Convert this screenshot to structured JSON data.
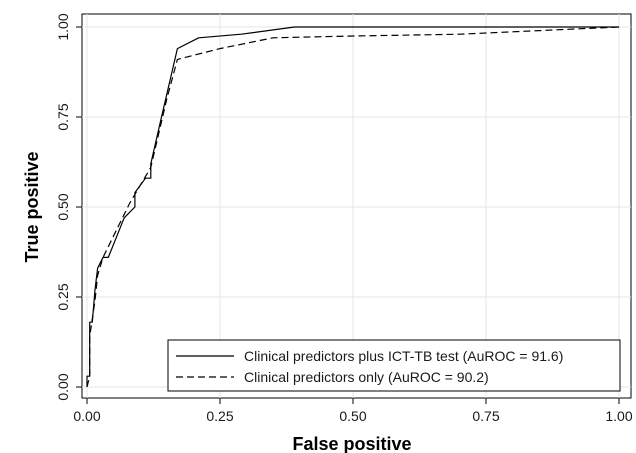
{
  "chart_data": {
    "type": "line",
    "title": "",
    "xlabel": "False positive",
    "ylabel": "True positive",
    "xlim": [
      0,
      1
    ],
    "ylim": [
      0,
      1
    ],
    "x_ticks": [
      "0.00",
      "0.25",
      "0.50",
      "0.75",
      "1.00"
    ],
    "y_ticks": [
      "0.00",
      "0.25",
      "0.50",
      "0.75",
      "1.00"
    ],
    "grid": true,
    "legend_position": "bottom-right",
    "series": [
      {
        "name": "Clinical predictors plus ICT-TB test (AuROC = 91.6)",
        "style": "solid",
        "color": "#000000",
        "points": [
          [
            0.0,
            0.0
          ],
          [
            0.0,
            0.03
          ],
          [
            0.005,
            0.03
          ],
          [
            0.005,
            0.18
          ],
          [
            0.01,
            0.18
          ],
          [
            0.015,
            0.27
          ],
          [
            0.02,
            0.33
          ],
          [
            0.03,
            0.36
          ],
          [
            0.04,
            0.36
          ],
          [
            0.07,
            0.47
          ],
          [
            0.09,
            0.5
          ],
          [
            0.09,
            0.54
          ],
          [
            0.11,
            0.58
          ],
          [
            0.12,
            0.58
          ],
          [
            0.12,
            0.62
          ],
          [
            0.14,
            0.75
          ],
          [
            0.17,
            0.94
          ],
          [
            0.21,
            0.97
          ],
          [
            0.29,
            0.98
          ],
          [
            0.39,
            1.0
          ],
          [
            1.0,
            1.0
          ]
        ]
      },
      {
        "name": "Clinical predictors only (AuROC = 90.2)",
        "style": "dashed",
        "color": "#000000",
        "points": [
          [
            0.0,
            0.0
          ],
          [
            0.005,
            0.03
          ],
          [
            0.005,
            0.14
          ],
          [
            0.015,
            0.24
          ],
          [
            0.02,
            0.31
          ],
          [
            0.03,
            0.36
          ],
          [
            0.05,
            0.42
          ],
          [
            0.08,
            0.51
          ],
          [
            0.1,
            0.56
          ],
          [
            0.12,
            0.61
          ],
          [
            0.15,
            0.8
          ],
          [
            0.17,
            0.91
          ],
          [
            0.25,
            0.94
          ],
          [
            0.35,
            0.97
          ],
          [
            0.5,
            0.975
          ],
          [
            0.7,
            0.98
          ],
          [
            0.85,
            0.99
          ],
          [
            1.0,
            1.0
          ]
        ]
      }
    ]
  }
}
